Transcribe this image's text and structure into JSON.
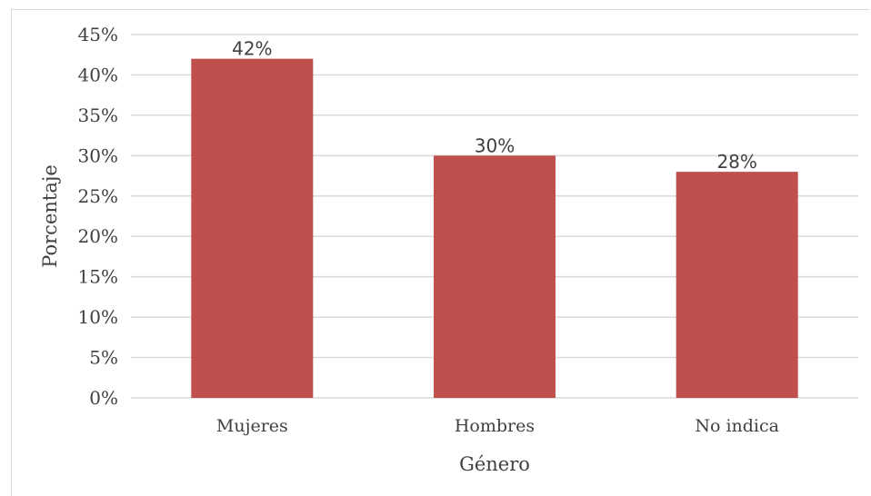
{
  "chart_data": {
    "type": "bar",
    "categories": [
      "Mujeres",
      "Hombres",
      "No indica"
    ],
    "values": [
      42,
      30,
      28
    ],
    "data_labels": [
      "42%",
      "30%",
      "28%"
    ],
    "xlabel": "Género",
    "ylabel": "Porcentaje",
    "ylim": [
      0,
      45
    ],
    "ytick_step": 5,
    "ytick_labels": [
      "0%",
      "5%",
      "10%",
      "15%",
      "20%",
      "25%",
      "30%",
      "35%",
      "40%",
      "45%"
    ],
    "grid": true,
    "legend": "none",
    "bar_color": "#c0504d"
  }
}
